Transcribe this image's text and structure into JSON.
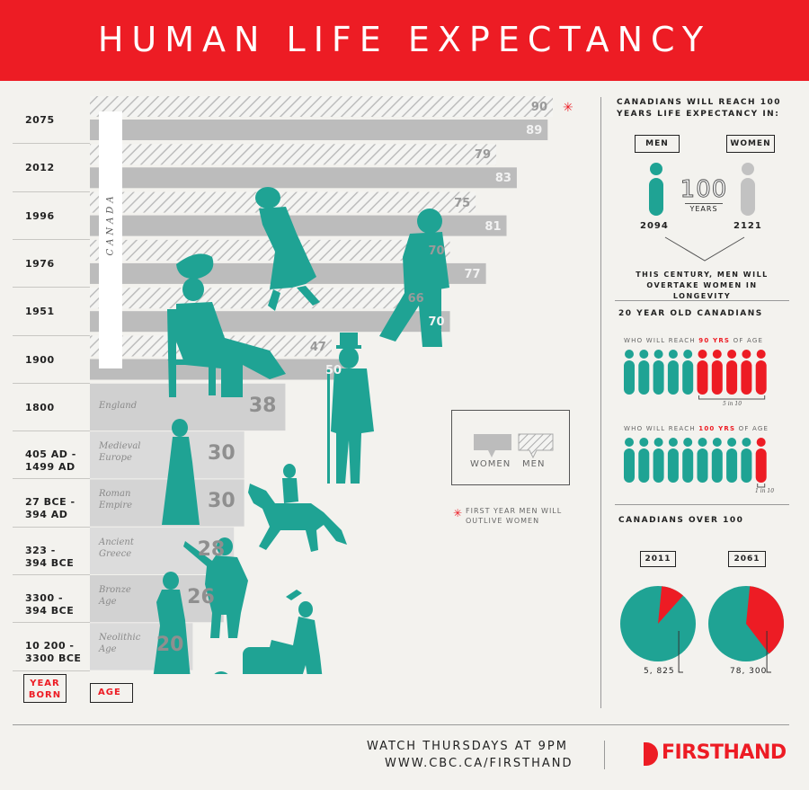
{
  "title": "HUMAN LIFE EXPECTANCY",
  "chart_data": {
    "type": "bar",
    "orientation": "horizontal",
    "categories": [
      "2075",
      "2012",
      "1996",
      "1976",
      "1951",
      "1900",
      "1800",
      "405 AD - 1499 AD",
      "27 BCE - 394 AD",
      "323 - 394 BCE",
      "3300 - 394 BCE",
      "10 200 - 3300 BCE"
    ],
    "eras": [
      "",
      "",
      "",
      "",
      "",
      "",
      "England",
      "Medieval Europe",
      "Roman Empire",
      "Ancient Greece",
      "Bronze Age",
      "Neolithic Age"
    ],
    "series": [
      {
        "name": "MEN",
        "values": [
          90,
          79,
          75,
          70,
          66,
          47,
          null,
          null,
          null,
          null,
          null,
          null
        ]
      },
      {
        "name": "WOMEN",
        "values": [
          89,
          83,
          81,
          77,
          70,
          50,
          null,
          null,
          null,
          null,
          null,
          null
        ]
      },
      {
        "name": "",
        "values": [
          null,
          null,
          null,
          null,
          null,
          null,
          38,
          30,
          30,
          28,
          26,
          20
        ]
      }
    ],
    "xlim": [
      0,
      90
    ],
    "region_label": "CANADA",
    "legend": {
      "items": [
        "WOMEN",
        "MEN"
      ],
      "placement": "right"
    },
    "note": "FIRST YEAR MEN WILL OUTLIVE WOMEN",
    "axis_tags": {
      "year": "YEAR BORN",
      "age": "AGE"
    }
  },
  "sidebar": {
    "reach100": {
      "title": "CANADIANS WILL REACH 100 YEARS LIFE EXPECTANCY IN:",
      "men_label": "MEN",
      "women_label": "WOMEN",
      "center_number": "100",
      "center_unit": "YEARS",
      "men_year": "2094",
      "women_year": "2121",
      "caption": "THIS CENTURY, MEN WILL OVERTAKE WOMEN IN LONGEVITY"
    },
    "twenty": {
      "title": "20 YEAR OLD CANADIANS",
      "row1_pre": "WHO WILL REACH",
      "row1_hi": "90 YRS",
      "row1_post": "OF AGE",
      "row1_count": 5,
      "row1_note": "5 in 10",
      "row2_pre": "WHO WILL REACH",
      "row2_hi": "100 YRS",
      "row2_post": "OF AGE",
      "row2_count": 1,
      "row2_note": "1 in 10",
      "total": 10
    },
    "over100": {
      "title": "CANADIANS OVER 100",
      "pies": [
        {
          "year": "2011",
          "value_label": "5, 825",
          "fraction": 0.1
        },
        {
          "year": "2061",
          "value_label": "78, 300",
          "fraction": 0.38
        }
      ]
    }
  },
  "footer": {
    "line1": "WATCH THURSDAYS AT 9PM",
    "line2": "WWW.CBC.CA/FIRSTHAND",
    "brand": "FIRSTHAND"
  },
  "colors": {
    "red": "#ed1c24",
    "teal": "#1fa394",
    "bar_dark": "#bcbcbc",
    "bar_light": "#dcdcdc"
  }
}
